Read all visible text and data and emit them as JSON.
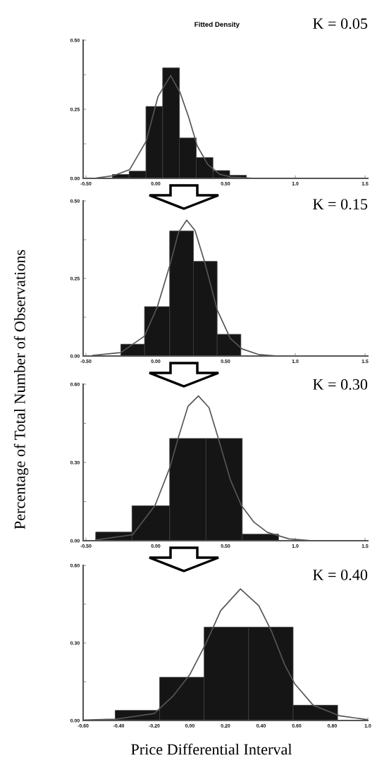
{
  "chart_data": [
    {
      "type": "histogram",
      "title": "Fitted Density",
      "ylabel": "Percentage of Total Number of Observations",
      "annotations": [
        "K = 0.05"
      ],
      "xlim": [
        -0.52,
        1.52
      ],
      "xticks": [
        {
          "value": -0.5,
          "label": "-0.50"
        },
        {
          "value": 0,
          "label": "0.00"
        },
        {
          "value": 0.5,
          "label": "0.50"
        },
        {
          "value": 1,
          "label": "1.0"
        },
        {
          "value": 1.5,
          "label": "1.5"
        }
      ],
      "ylim": [
        0,
        0.5
      ],
      "yticks": [
        {
          "value": 0,
          "label": "0.00"
        },
        {
          "value": 0.125,
          "label": null
        },
        {
          "value": 0.25,
          "label": "0.25"
        },
        {
          "value": 0.375,
          "label": null
        },
        {
          "value": 0.5,
          "label": "0.50"
        }
      ],
      "grid": false,
      "legend": false,
      "series": [
        {
          "type": "histogram",
          "color": "#151515",
          "bins": [
            -0.31,
            -0.19,
            -0.07,
            0.05,
            0.17,
            0.29,
            0.41,
            0.53,
            0.65
          ],
          "values": [
            0.014,
            0.026,
            0.26,
            0.4,
            0.146,
            0.075,
            0.028,
            0.011
          ]
        },
        {
          "type": "line",
          "color": "#555555",
          "x": [
            -0.42,
            -0.3,
            -0.186,
            -0.068,
            0.017,
            0.107,
            0.175,
            0.237,
            0.297,
            0.373,
            0.458,
            0.54,
            0.71
          ],
          "values": [
            0.002,
            0.01,
            0.032,
            0.135,
            0.297,
            0.372,
            0.31,
            0.22,
            0.118,
            0.05,
            0.015,
            0.005,
            0.0
          ]
        }
      ]
    },
    {
      "type": "histogram",
      "annotations": [
        "K = 0.15"
      ],
      "xlim": [
        -0.52,
        1.52
      ],
      "xticks": [
        {
          "value": -0.5,
          "label": "-0.50"
        },
        {
          "value": 0,
          "label": "0.00"
        },
        {
          "value": 0.5,
          "label": "0.50"
        },
        {
          "value": 1,
          "label": "1.0"
        },
        {
          "value": 1.5,
          "label": "1.5"
        }
      ],
      "ylim": [
        0,
        0.5
      ],
      "yticks": [
        {
          "value": 0,
          "label": "0.00"
        },
        {
          "value": 0.125,
          "label": null
        },
        {
          "value": 0.25,
          "label": "0.25"
        },
        {
          "value": 0.375,
          "label": null
        },
        {
          "value": 0.5,
          "label": "0.50"
        }
      ],
      "grid": false,
      "legend": false,
      "series": [
        {
          "type": "histogram",
          "color": "#151515",
          "bins": [
            -0.25,
            -0.08,
            0.1,
            0.27,
            0.44,
            0.61
          ],
          "values": [
            0.038,
            0.159,
            0.403,
            0.305,
            0.07
          ]
        },
        {
          "type": "line",
          "color": "#555555",
          "x": [
            -0.45,
            -0.25,
            -0.081,
            0.012,
            0.101,
            0.163,
            0.222,
            0.281,
            0.348,
            0.441,
            0.534,
            0.618,
            0.736,
            0.87
          ],
          "values": [
            0.002,
            0.011,
            0.064,
            0.159,
            0.292,
            0.398,
            0.438,
            0.405,
            0.307,
            0.148,
            0.057,
            0.023,
            0.005,
            0.0
          ]
        }
      ]
    },
    {
      "type": "histogram",
      "annotations": [
        "K = 0.30"
      ],
      "xlim": [
        -0.52,
        1.52
      ],
      "xticks": [
        {
          "value": -0.5,
          "label": "-0.50"
        },
        {
          "value": 0,
          "label": "0.00"
        },
        {
          "value": 0.5,
          "label": "0.50"
        },
        {
          "value": 1,
          "label": "1.0"
        },
        {
          "value": 1.5,
          "label": "1.5"
        }
      ],
      "ylim": [
        0,
        0.6
      ],
      "yticks": [
        {
          "value": 0,
          "label": "0.00"
        },
        {
          "value": 0.15,
          "label": null
        },
        {
          "value": 0.3,
          "label": "0.30"
        },
        {
          "value": 0.45,
          "label": null
        },
        {
          "value": 0.6,
          "label": "0.60"
        }
      ],
      "grid": false,
      "legend": false,
      "series": [
        {
          "type": "histogram",
          "color": "#151515",
          "bins": [
            -0.43,
            -0.17,
            0.1,
            0.36,
            0.62,
            0.88
          ],
          "values": [
            0.033,
            0.134,
            0.392,
            0.392,
            0.025
          ]
        },
        {
          "type": "line",
          "color": "#555555",
          "x": [
            -0.43,
            -0.165,
            -0.005,
            0.101,
            0.163,
            0.231,
            0.306,
            0.382,
            0.441,
            0.534,
            0.614,
            0.702,
            0.8,
            0.955,
            1.12
          ],
          "values": [
            0.003,
            0.023,
            0.135,
            0.28,
            0.397,
            0.515,
            0.555,
            0.51,
            0.406,
            0.235,
            0.135,
            0.072,
            0.032,
            0.007,
            0.0
          ]
        }
      ]
    },
    {
      "type": "histogram",
      "xlabel": "Price Differential Interval",
      "annotations": [
        "K = 0.40"
      ],
      "xlim": [
        -0.6,
        1.0
      ],
      "xticks": [
        {
          "value": -0.6,
          "label": "-0.60"
        },
        {
          "value": -0.4,
          "label": "-0.40"
        },
        {
          "value": -0.2,
          "label": "-0.20"
        },
        {
          "value": 0,
          "label": "0.00"
        },
        {
          "value": 0.2,
          "label": "0.20"
        },
        {
          "value": 0.4,
          "label": "0.40"
        },
        {
          "value": 0.6,
          "label": "0.60"
        },
        {
          "value": 0.8,
          "label": "0.80"
        },
        {
          "value": 1.0,
          "label": "1.0"
        }
      ],
      "ylim": [
        0,
        0.6
      ],
      "yticks": [
        {
          "value": 0,
          "label": "0.00"
        },
        {
          "value": 0.15,
          "label": null
        },
        {
          "value": 0.3,
          "label": "0.30"
        },
        {
          "value": 0.45,
          "label": null
        },
        {
          "value": 0.6,
          "label": "0.60"
        }
      ],
      "grid": false,
      "legend": false,
      "series": [
        {
          "type": "histogram",
          "color": "#151515",
          "bins": [
            -0.42,
            -0.17,
            0.08,
            0.33,
            0.58,
            0.83
          ],
          "values": [
            0.039,
            0.167,
            0.361,
            0.361,
            0.059
          ]
        },
        {
          "type": "line",
          "color": "#555555",
          "x": [
            -0.6,
            -0.42,
            -0.2,
            -0.093,
            0.0,
            0.089,
            0.173,
            0.284,
            0.387,
            0.46,
            0.533,
            0.589,
            0.693,
            0.843,
            1.0
          ],
          "values": [
            0.002,
            0.005,
            0.027,
            0.096,
            0.178,
            0.297,
            0.425,
            0.509,
            0.444,
            0.343,
            0.215,
            0.142,
            0.059,
            0.018,
            0.003
          ]
        }
      ]
    }
  ]
}
